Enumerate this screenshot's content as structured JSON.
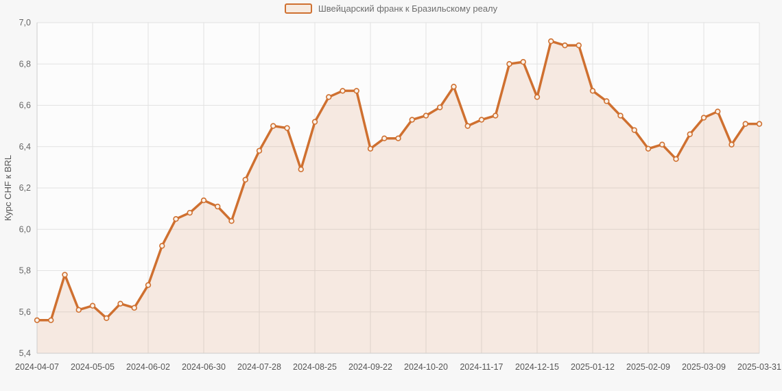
{
  "page": {
    "background": "#f7f7f7",
    "plot_background": "#fcfcfc",
    "gridline_color": "#e2e2e2",
    "axis_line_color": "#cccccc",
    "tick_label_color": "#666666",
    "axis_title_color": "#555555"
  },
  "legend": {
    "label": "Швейцарский франк к Бразильскому реалу",
    "swatch_border_color": "#cf7030",
    "swatch_fill_color": "#f7ebe1"
  },
  "chart_data": {
    "type": "area",
    "title": "",
    "xlabel": "",
    "ylabel": "Курс CHF к BRL",
    "series_name": "Швейцарский франк к Бразильскому реалу",
    "legend_position": "top-center",
    "grid": true,
    "ylim": [
      5.4,
      7.0
    ],
    "ytick_step": 0.2,
    "ytick_labels": [
      "5,4",
      "5,6",
      "5,8",
      "6,0",
      "6,2",
      "6,4",
      "6,6",
      "6,8",
      "7,0"
    ],
    "xtick_every": 4,
    "xtick_labels": [
      "2024-04-07",
      "2024-05-05",
      "2024-06-02",
      "2024-06-30",
      "2024-07-28",
      "2024-08-25",
      "2024-09-22",
      "2024-10-20",
      "2024-11-17",
      "2024-12-15",
      "2025-01-12",
      "2025-02-09",
      "2025-03-09",
      "2025-03-31"
    ],
    "x": [
      "2024-04-07",
      "2024-04-14",
      "2024-04-21",
      "2024-04-28",
      "2024-05-05",
      "2024-05-12",
      "2024-05-19",
      "2024-05-26",
      "2024-06-02",
      "2024-06-09",
      "2024-06-16",
      "2024-06-23",
      "2024-06-30",
      "2024-07-07",
      "2024-07-14",
      "2024-07-21",
      "2024-07-28",
      "2024-08-04",
      "2024-08-11",
      "2024-08-18",
      "2024-08-25",
      "2024-09-01",
      "2024-09-08",
      "2024-09-15",
      "2024-09-22",
      "2024-09-29",
      "2024-10-06",
      "2024-10-13",
      "2024-10-20",
      "2024-10-27",
      "2024-11-03",
      "2024-11-10",
      "2024-11-17",
      "2024-11-24",
      "2024-12-01",
      "2024-12-08",
      "2024-12-15",
      "2024-12-22",
      "2024-12-29",
      "2025-01-05",
      "2025-01-12",
      "2025-01-19",
      "2025-01-26",
      "2025-02-02",
      "2025-02-09",
      "2025-02-16",
      "2025-02-23",
      "2025-03-02",
      "2025-03-09",
      "2025-03-16",
      "2025-03-23",
      "2025-03-30",
      "2025-03-31"
    ],
    "values": [
      5.56,
      5.56,
      5.78,
      5.61,
      5.63,
      5.57,
      5.64,
      5.62,
      5.73,
      5.92,
      6.05,
      6.08,
      6.14,
      6.11,
      6.04,
      6.24,
      6.38,
      6.5,
      6.49,
      6.29,
      6.52,
      6.64,
      6.67,
      6.67,
      6.39,
      6.44,
      6.44,
      6.53,
      6.55,
      6.59,
      6.69,
      6.5,
      6.53,
      6.55,
      6.8,
      6.81,
      6.64,
      6.91,
      6.89,
      6.89,
      6.67,
      6.62,
      6.55,
      6.48,
      6.39,
      6.41,
      6.34,
      6.46,
      6.54,
      6.57,
      6.41,
      6.51,
      6.51
    ],
    "line_color": "#cf7030",
    "fill_color_rgba": "rgba(207,112,48,0.13)",
    "marker_fill_color": "#faf2ea",
    "marker_stroke_color": "#cf7030"
  }
}
